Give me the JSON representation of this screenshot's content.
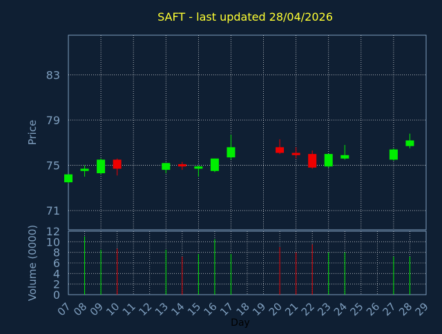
{
  "title": "SAFT - last updated 28/04/2026",
  "colors": {
    "background": "#0f1f33",
    "grid": "#ffffff",
    "axis_text": "#7f9fbf",
    "title": "#ffff33",
    "up": "#00ee00",
    "down": "#ee0000",
    "axis_label": "#000000"
  },
  "chart_data": [
    {
      "type": "candlestick",
      "ylabel": "Price",
      "ylim": [
        69.3,
        86.5
      ],
      "yticks": [
        71,
        75,
        79,
        83
      ],
      "xlim": [
        7,
        29
      ],
      "grid": true,
      "candles": [
        {
          "day": 7,
          "open": 73.5,
          "high": 74.2,
          "low": 73.4,
          "close": 74.2,
          "dir": "up"
        },
        {
          "day": 8,
          "open": 74.5,
          "high": 75.0,
          "low": 74.0,
          "close": 74.7,
          "dir": "up"
        },
        {
          "day": 9,
          "open": 74.3,
          "high": 75.6,
          "low": 74.2,
          "close": 75.5,
          "dir": "up"
        },
        {
          "day": 10,
          "open": 75.5,
          "high": 75.6,
          "low": 74.1,
          "close": 74.7,
          "dir": "down"
        },
        {
          "day": 13,
          "open": 74.6,
          "high": 75.2,
          "low": 74.3,
          "close": 75.2,
          "dir": "up"
        },
        {
          "day": 14,
          "open": 75.1,
          "high": 75.3,
          "low": 74.6,
          "close": 74.9,
          "dir": "down"
        },
        {
          "day": 15,
          "open": 74.7,
          "high": 75.0,
          "low": 74.0,
          "close": 74.9,
          "dir": "up"
        },
        {
          "day": 16,
          "open": 74.5,
          "high": 75.6,
          "low": 74.4,
          "close": 75.6,
          "dir": "up"
        },
        {
          "day": 17,
          "open": 75.7,
          "high": 77.7,
          "low": 75.5,
          "close": 76.6,
          "dir": "up"
        },
        {
          "day": 20,
          "open": 76.6,
          "high": 77.3,
          "low": 76.0,
          "close": 76.1,
          "dir": "down"
        },
        {
          "day": 21,
          "open": 76.1,
          "high": 76.6,
          "low": 75.6,
          "close": 75.9,
          "dir": "down"
        },
        {
          "day": 22,
          "open": 76.0,
          "high": 76.3,
          "low": 74.7,
          "close": 74.8,
          "dir": "down"
        },
        {
          "day": 23,
          "open": 74.9,
          "high": 76.0,
          "low": 74.8,
          "close": 76.0,
          "dir": "up"
        },
        {
          "day": 24,
          "open": 75.6,
          "high": 76.8,
          "low": 75.5,
          "close": 75.9,
          "dir": "up"
        },
        {
          "day": 27,
          "open": 75.5,
          "high": 76.5,
          "low": 75.4,
          "close": 76.4,
          "dir": "up"
        },
        {
          "day": 28,
          "open": 76.7,
          "high": 77.8,
          "low": 76.5,
          "close": 77.2,
          "dir": "up"
        }
      ]
    },
    {
      "type": "bar",
      "ylabel": "Volume (0000)",
      "xlabel": "Day",
      "ylim": [
        0,
        12
      ],
      "yticks": [
        0,
        2,
        4,
        6,
        8,
        10,
        12
      ],
      "xlim": [
        7,
        29
      ],
      "xticks": [
        "07",
        "08",
        "09",
        "10",
        "11",
        "12",
        "13",
        "14",
        "15",
        "16",
        "17",
        "18",
        "19",
        "20",
        "21",
        "22",
        "23",
        "24",
        "25",
        "26",
        "27",
        "28",
        "29"
      ],
      "grid": true,
      "bars": [
        {
          "day": 8,
          "value": 11.0,
          "dir": "up"
        },
        {
          "day": 9,
          "value": 8.5,
          "dir": "up"
        },
        {
          "day": 10,
          "value": 8.7,
          "dir": "down"
        },
        {
          "day": 13,
          "value": 8.5,
          "dir": "up"
        },
        {
          "day": 14,
          "value": 7.2,
          "dir": "down"
        },
        {
          "day": 15,
          "value": 7.7,
          "dir": "up"
        },
        {
          "day": 16,
          "value": 10.5,
          "dir": "up"
        },
        {
          "day": 17,
          "value": 7.7,
          "dir": "up"
        },
        {
          "day": 20,
          "value": 9.0,
          "dir": "down"
        },
        {
          "day": 21,
          "value": 8.0,
          "dir": "down"
        },
        {
          "day": 22,
          "value": 9.5,
          "dir": "down"
        },
        {
          "day": 23,
          "value": 8.0,
          "dir": "up"
        },
        {
          "day": 24,
          "value": 8.0,
          "dir": "up"
        },
        {
          "day": 27,
          "value": 7.2,
          "dir": "up"
        },
        {
          "day": 28,
          "value": 7.2,
          "dir": "up"
        }
      ]
    }
  ]
}
